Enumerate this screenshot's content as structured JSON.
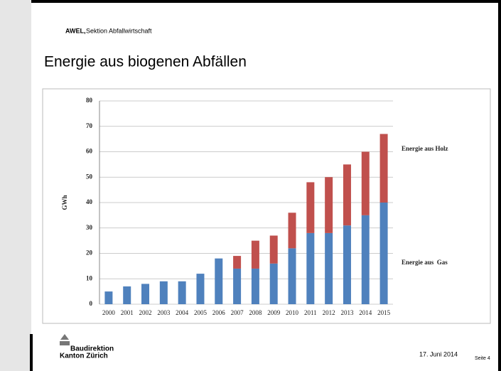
{
  "header": {
    "org": "AWEL,",
    "section": "Sektion Abfallwirtschaft",
    "title": "Energie aus biogenen Abfällen"
  },
  "footer": {
    "logo_line1": "Baudirektion",
    "logo_line2": "Kanton Zürich",
    "date": "17. Juni 2014",
    "page": "Seite 4"
  },
  "chart_data": {
    "type": "stacked_bar",
    "ylabel": "GWh",
    "categories": [
      "2000",
      "2001",
      "2002",
      "2003",
      "2004",
      "2005",
      "2006",
      "2007",
      "2008",
      "2009",
      "2010",
      "2011",
      "2012",
      "2013",
      "2014",
      "2015"
    ],
    "series": [
      {
        "name": "Energie aus  Gas",
        "color": "#4f81bd",
        "values": [
          5,
          7,
          8,
          9,
          9,
          12,
          18,
          14,
          14,
          16,
          22,
          28,
          28,
          31,
          35,
          40
        ]
      },
      {
        "name": "Energie aus Holz",
        "color": "#c0504d",
        "values": [
          0,
          0,
          0,
          0,
          0,
          0,
          0,
          5,
          11,
          11,
          14,
          20,
          22,
          24,
          25,
          27
        ]
      }
    ],
    "ylim": [
      0,
      80
    ],
    "yticks": [
      0,
      10,
      20,
      30,
      40,
      50,
      60,
      70,
      80
    ],
    "grid": true
  }
}
